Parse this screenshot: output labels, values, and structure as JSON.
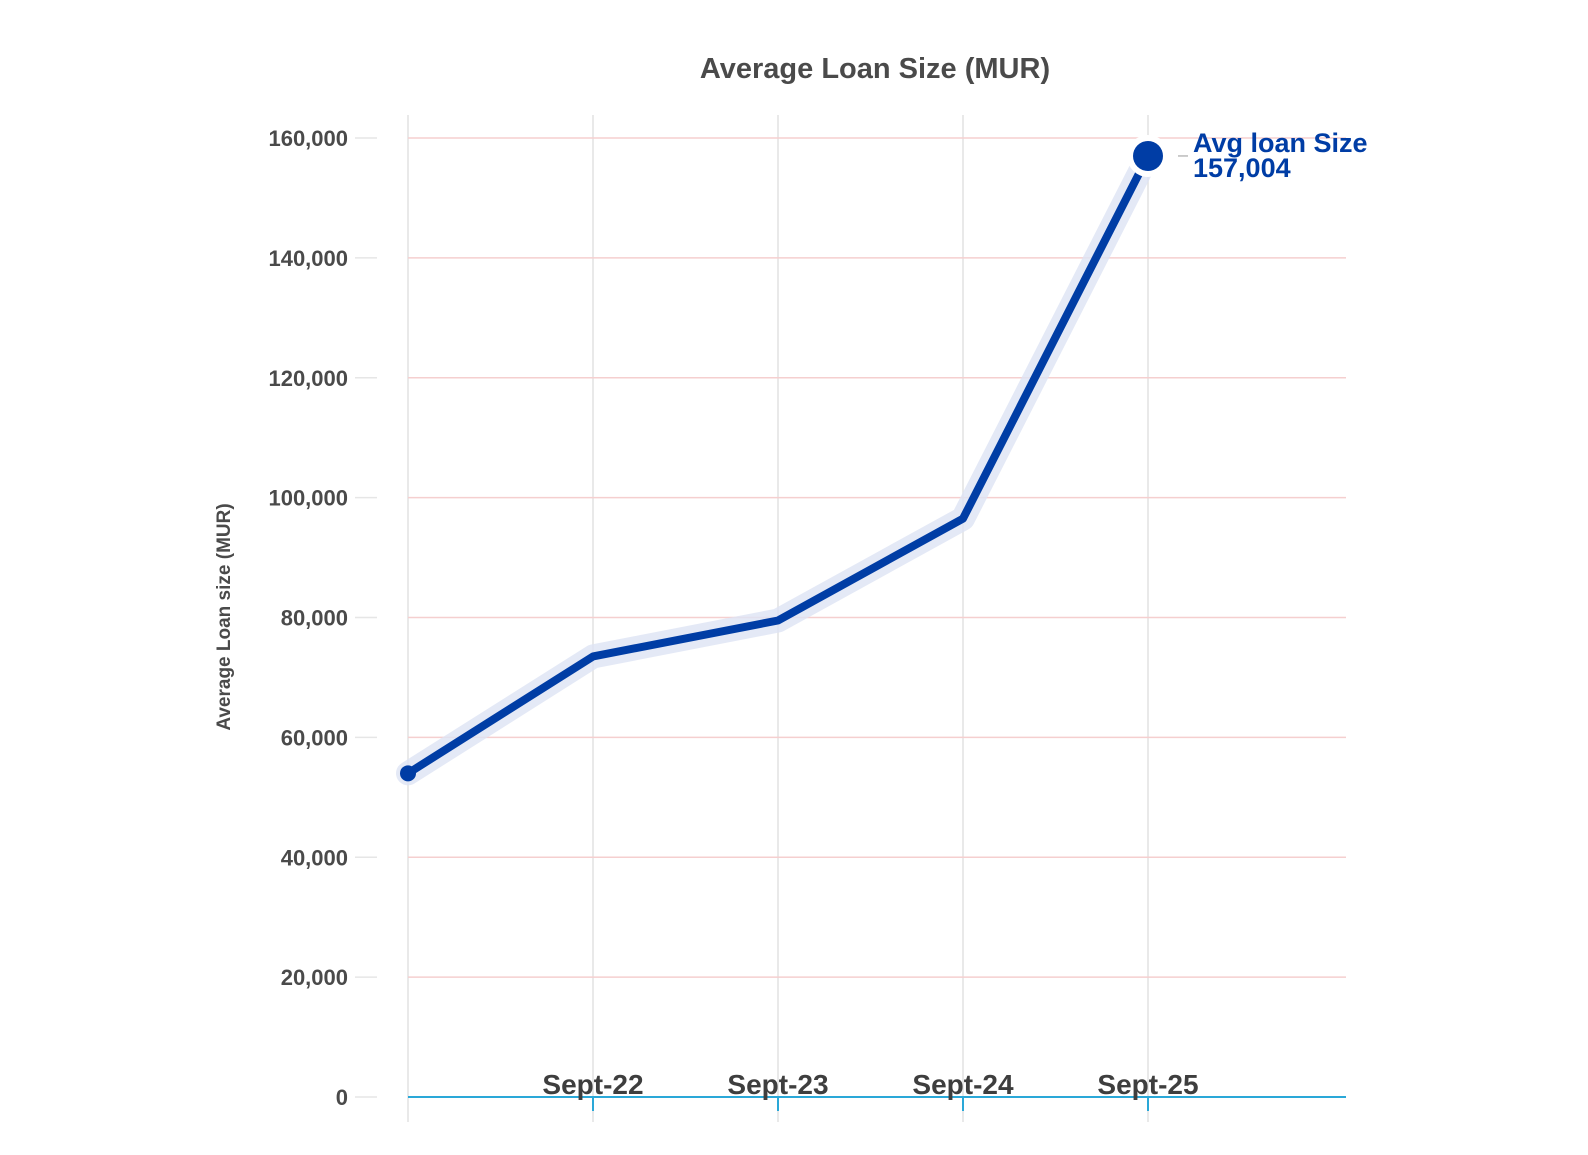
{
  "chart_data": {
    "type": "line",
    "title": "Average Loan Size (MUR)",
    "xlabel": "",
    "ylabel": "Average Loan size (MUR)",
    "x_tick_labels": [
      "Sept-22",
      "Sept-23",
      "Sept-24",
      "Sept-25"
    ],
    "x_points": [
      "",
      "Sept-22",
      "Sept-23",
      "Sept-24",
      "Sept-25"
    ],
    "ylim": [
      0,
      160000
    ],
    "y_ticks": [
      0,
      20000,
      40000,
      60000,
      80000,
      100000,
      120000,
      140000,
      160000
    ],
    "y_tick_labels": [
      "0",
      "20,000",
      "40,000",
      "60,000",
      "80,000",
      "100,000",
      "120,000",
      "140,000",
      "160,000"
    ],
    "grid": true,
    "series": [
      {
        "values": [
          54000,
          73500,
          79500,
          96500,
          157004
        ]
      }
    ],
    "annotation": {
      "line1": "Avg loan Size",
      "line2": "157,004"
    },
    "colors": {
      "line": "#003DA5",
      "halo": "#DDE4F4",
      "hgrid": "#F5CFCF",
      "vgrid": "#E2E2E2",
      "x_axis": "#2AA8D8",
      "text": "#4A4A4A",
      "annotation_text": "#003DA5"
    }
  }
}
